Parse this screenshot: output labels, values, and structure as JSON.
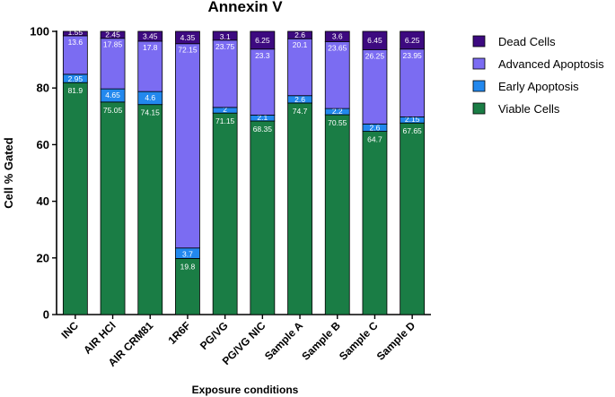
{
  "chart_data": {
    "type": "bar",
    "stacked": true,
    "title": "Annexin V",
    "xlabel": "Exposure conditions",
    "ylabel": "Cell % Gated",
    "ylim": [
      0,
      100
    ],
    "yticks": [
      0,
      20,
      40,
      60,
      80,
      100
    ],
    "legend_position": "right",
    "categories": [
      "INC",
      "AIR HCl",
      "AIR CRM81",
      "1R6F",
      "PG/VG",
      "PG/VG NIC",
      "Sample A",
      "Sample B",
      "Sample C",
      "Sample D"
    ],
    "series": [
      {
        "name": "Viable Cells",
        "color": "#1a7d45",
        "values": [
          81.9,
          75.05,
          74.15,
          19.8,
          71.15,
          68.35,
          74.7,
          70.55,
          64.7,
          67.65
        ],
        "labels": [
          "81.9",
          "75.05",
          "74.15",
          "19.8",
          "71.15",
          "68.35",
          "74.7",
          "70.55",
          "64.7",
          "67.65"
        ]
      },
      {
        "name": "Early Apoptosis",
        "color": "#2288ee",
        "values": [
          2.95,
          4.65,
          4.6,
          3.7,
          2,
          2.1,
          2.6,
          2.2,
          2.6,
          2.15
        ],
        "labels": [
          "2.95",
          "4.65",
          "4.6",
          "3.7",
          "2",
          "2.1",
          "2.6",
          "2.2",
          "2.6",
          "2.15"
        ]
      },
      {
        "name": "Advanced Apoptosis",
        "color": "#7b6cf2",
        "values": [
          13.6,
          17.85,
          17.8,
          72.15,
          23.75,
          23.3,
          20.1,
          23.65,
          26.25,
          23.95
        ],
        "labels": [
          "13.6",
          "17.85",
          "17.8",
          "72.15",
          "23.75",
          "23.3",
          "20.1",
          "23.65",
          "26.25",
          "23.95"
        ]
      },
      {
        "name": "Dead Cells",
        "color": "#3d0a80",
        "values": [
          1.55,
          2.45,
          3.45,
          4.35,
          3.1,
          6.25,
          2.6,
          3.6,
          6.45,
          6.25
        ],
        "labels": [
          "1.55",
          "2.45",
          "3.45",
          "4.35",
          "3.1",
          "6.25",
          "2.6",
          "3.6",
          "6.45",
          "6.25"
        ]
      }
    ],
    "legend_order": [
      "Dead Cells",
      "Advanced Apoptosis",
      "Early Apoptosis",
      "Viable Cells"
    ]
  }
}
